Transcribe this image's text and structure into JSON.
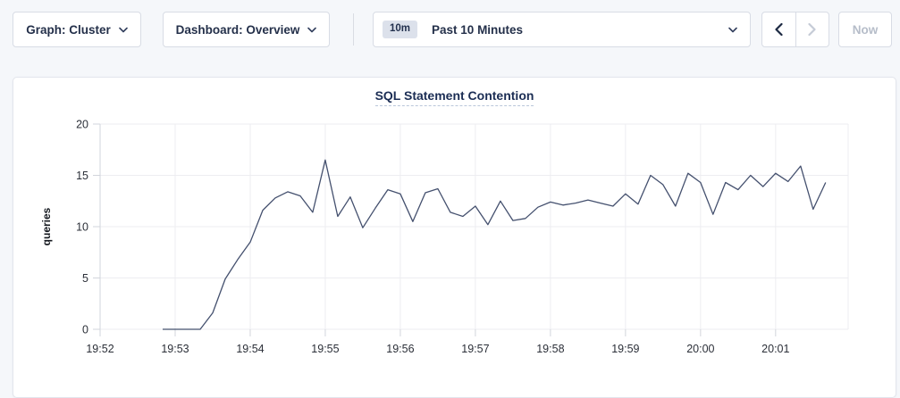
{
  "toolbar": {
    "graph_dropdown_label": "Graph: Cluster",
    "dashboard_dropdown_label": "Dashboard: Overview",
    "time_window_badge": "10m",
    "time_window_label": "Past 10 Minutes",
    "now_button_label": "Now",
    "icons": {
      "graph_dropdown": "chevron-down",
      "dashboard_dropdown": "chevron-down",
      "time_picker": "chevron-down",
      "time_back": "chevron-left",
      "time_forward": "chevron-right"
    },
    "state": {
      "time_back_enabled": true,
      "time_forward_enabled": false,
      "now_enabled": false
    }
  },
  "colors": {
    "page_background": "#f5f7fa",
    "card_background": "#ffffff",
    "accent_text": "#24304a",
    "title_text": "#1b2d54",
    "disabled": "#bac1cc",
    "series_line": "#44506e",
    "gridline": "#ededf1"
  },
  "chart_data": {
    "type": "line",
    "title": "SQL Statement Contention",
    "xlabel": "",
    "ylabel": "queries",
    "ylim": [
      0,
      20
    ],
    "yticks": [
      0,
      5,
      10,
      15,
      20
    ],
    "xticks": [
      "19:52",
      "19:53",
      "19:54",
      "19:55",
      "19:56",
      "19:57",
      "19:58",
      "19:59",
      "20:00",
      "20:01"
    ],
    "xlim_seconds": [
      0,
      598
    ],
    "x_origin_time": "19:52:00",
    "grid": true,
    "legend": "none",
    "line_color": "#44506e",
    "series": [
      {
        "name": "SQL Statement Contention",
        "start_time": "19:52:50",
        "start_offset_seconds": 50,
        "interval_seconds": 10,
        "values": [
          0,
          0,
          0,
          0,
          1.6,
          4.9,
          6.8,
          8.5,
          11.6,
          12.8,
          13.4,
          13.0,
          11.4,
          16.5,
          11.0,
          12.9,
          9.9,
          11.8,
          13.6,
          13.2,
          10.5,
          13.3,
          13.7,
          11.4,
          11.0,
          12.0,
          10.2,
          12.5,
          10.6,
          10.8,
          11.9,
          12.4,
          12.1,
          12.3,
          12.6,
          12.3,
          12.0,
          13.2,
          12.2,
          15.0,
          14.1,
          12.0,
          15.2,
          14.3,
          11.2,
          14.3,
          13.6,
          15.0,
          13.9,
          15.2,
          14.4,
          15.9,
          11.7,
          14.3
        ]
      }
    ]
  }
}
